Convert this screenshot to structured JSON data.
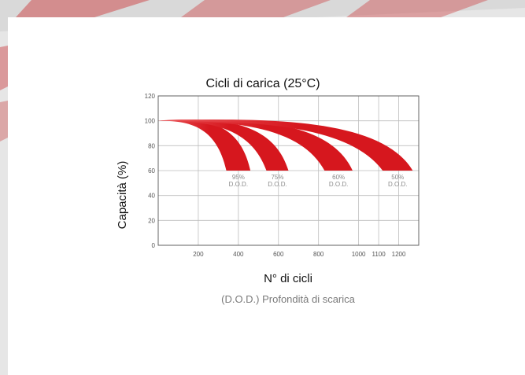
{
  "chart_data": {
    "type": "area",
    "title": "Cicli di carica (25°C)",
    "ylabel": "Capacità (%)",
    "xlabel": "N° di cicli",
    "subtitle": "(D.O.D.) Profondità di scarica",
    "xlim": [
      0,
      1300
    ],
    "ylim": [
      0,
      120
    ],
    "x_ticks": [
      200,
      400,
      600,
      800,
      1000,
      1100,
      1200
    ],
    "y_ticks": [
      0,
      20,
      40,
      60,
      80,
      100,
      120
    ],
    "grid": true,
    "series": [
      {
        "name": "95% D.O.D.",
        "label_line1": "95%",
        "label_line2": "D.O.D.",
        "start": [
          0,
          100
        ],
        "end_x_range": [
          340,
          460
        ],
        "end_y": 60
      },
      {
        "name": "75% D.O.D.",
        "label_line1": "75%",
        "label_line2": "D.O.D.",
        "start": [
          0,
          100
        ],
        "end_x_range": [
          540,
          650
        ],
        "end_y": 60
      },
      {
        "name": "60% D.O.D.",
        "label_line1": "60%",
        "label_line2": "D.O.D.",
        "start": [
          0,
          100
        ],
        "end_x_range": [
          830,
          970
        ],
        "end_y": 60
      },
      {
        "name": "50% D.O.D.",
        "label_line1": "50%",
        "label_line2": "D.O.D.",
        "start": [
          0,
          100
        ],
        "end_x_range": [
          1120,
          1270
        ],
        "end_y": 60
      }
    ]
  },
  "colors": {
    "band": "#d6171e",
    "band_light": "#ec5a5e",
    "grid": "#bdbdbd",
    "frame": "#555555",
    "bg_stripe": "#c9474a"
  }
}
